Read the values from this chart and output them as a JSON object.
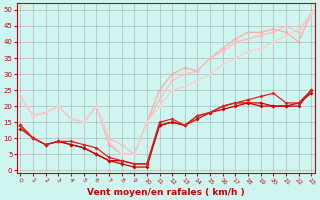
{
  "background_color": "#cef5f0",
  "grid_color": "#aaaaaa",
  "xlabel": "Vent moyen/en rafales ( km/h )",
  "xlabel_color": "#cc0000",
  "xlabel_fontsize": 6.5,
  "tick_color": "#cc0000",
  "yticks": [
    0,
    5,
    10,
    15,
    20,
    25,
    30,
    35,
    40,
    45,
    50
  ],
  "xticks": [
    0,
    1,
    2,
    3,
    4,
    5,
    6,
    7,
    8,
    9,
    10,
    11,
    12,
    13,
    14,
    15,
    16,
    17,
    18,
    19,
    20,
    21,
    22,
    23
  ],
  "ylim": [
    -1,
    52
  ],
  "xlim": [
    -0.3,
    23.3
  ],
  "lines": [
    {
      "x": [
        0,
        1,
        2,
        3,
        4,
        5,
        6,
        7,
        8,
        9,
        10,
        11,
        12,
        13,
        14,
        15,
        16,
        17,
        18,
        19,
        20,
        21,
        22,
        23
      ],
      "y": [
        14,
        10,
        8,
        9,
        8,
        7,
        5,
        3,
        2,
        1,
        1,
        14,
        15,
        14,
        17,
        18,
        20,
        21,
        21,
        20,
        20,
        20,
        20,
        25
      ],
      "color": "#cc0000",
      "lw": 0.9,
      "ms": 2.0
    },
    {
      "x": [
        0,
        1,
        2,
        3,
        4,
        5,
        6,
        7,
        8,
        9,
        10,
        11,
        12,
        13,
        14,
        15,
        16,
        17,
        18,
        19,
        20,
        21,
        22,
        23
      ],
      "y": [
        13,
        10,
        8,
        9,
        8,
        7,
        5,
        3,
        3,
        2,
        2,
        14,
        15,
        14,
        16,
        18,
        19,
        20,
        21,
        21,
        20,
        20,
        21,
        24
      ],
      "color": "#cc0000",
      "lw": 0.9,
      "ms": 2.0
    },
    {
      "x": [
        0,
        1,
        2,
        3,
        4,
        5,
        6,
        7,
        8,
        9,
        10,
        11,
        12,
        13,
        14,
        15,
        16,
        17,
        18,
        19,
        20,
        21,
        22,
        23
      ],
      "y": [
        23,
        17,
        18,
        20,
        16,
        15,
        20,
        8,
        5,
        5,
        15,
        25,
        30,
        32,
        31,
        35,
        38,
        41,
        43,
        43,
        44,
        43,
        40,
        49
      ],
      "color": "#ffaaaa",
      "lw": 0.9,
      "ms": 2.0
    },
    {
      "x": [
        0,
        1,
        2,
        3,
        4,
        5,
        6,
        7,
        8,
        9,
        10,
        11,
        12,
        13,
        14,
        15,
        16,
        17,
        18,
        19,
        20,
        21,
        22,
        23
      ],
      "y": [
        23,
        17,
        18,
        20,
        16,
        15,
        20,
        10,
        8,
        5,
        15,
        22,
        28,
        30,
        31,
        35,
        37,
        40,
        41,
        42,
        43,
        45,
        43,
        49
      ],
      "color": "#ffbbbb",
      "lw": 0.9,
      "ms": 2.0
    },
    {
      "x": [
        0,
        1,
        2,
        3,
        4,
        5,
        6,
        7,
        8,
        9,
        10,
        11,
        12,
        13,
        14,
        15,
        16,
        17,
        18,
        19,
        20,
        21,
        22,
        23
      ],
      "y": [
        23,
        17,
        18,
        20,
        16,
        15,
        20,
        9,
        5,
        5,
        15,
        20,
        25,
        26,
        28,
        30,
        33,
        35,
        37,
        38,
        40,
        42,
        44,
        49
      ],
      "color": "#ffcccc",
      "lw": 0.9,
      "ms": 2.0
    },
    {
      "x": [
        0,
        1,
        2,
        3,
        4,
        5,
        6,
        7,
        8,
        9,
        10,
        11,
        12,
        13,
        14,
        15,
        16,
        17,
        18,
        19,
        20,
        21,
        22,
        23
      ],
      "y": [
        14,
        10,
        8,
        9,
        9,
        8,
        7,
        4,
        3,
        2,
        2,
        15,
        16,
        14,
        17,
        18,
        20,
        21,
        22,
        23,
        24,
        21,
        21,
        25
      ],
      "color": "#dd2222",
      "lw": 0.9,
      "ms": 2.0
    }
  ]
}
